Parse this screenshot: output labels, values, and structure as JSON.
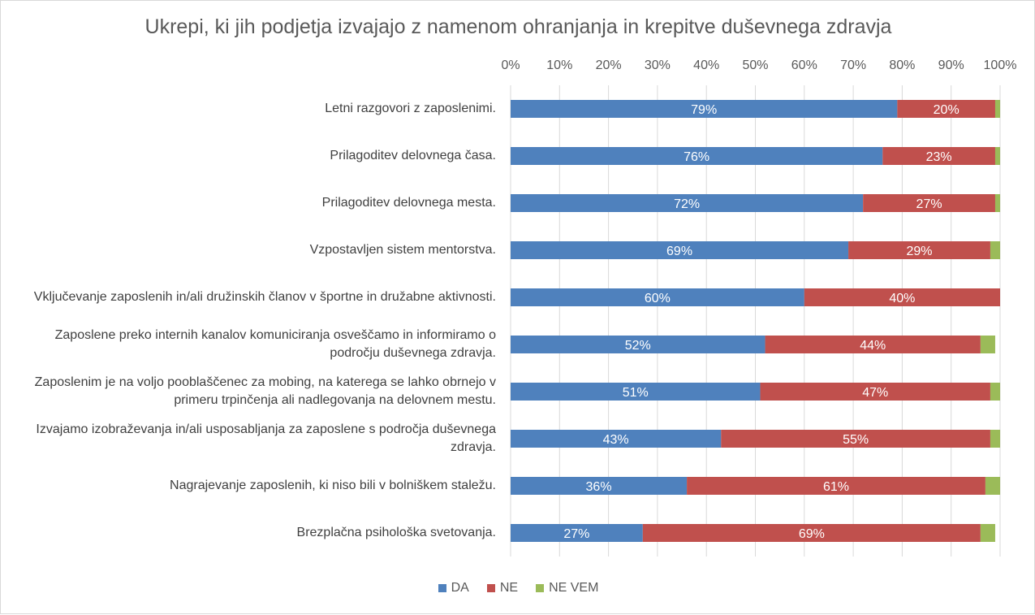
{
  "chart_data": {
    "type": "bar",
    "orientation": "horizontal",
    "stacked": "percent",
    "title": "Ukrepi, ki jih podjetja izvajajo z namenom ohranjanja in krepitve duševnega zdravja",
    "xlabel": "",
    "ylabel": "",
    "xlim": [
      0,
      100
    ],
    "x_ticks": [
      "0%",
      "10%",
      "20%",
      "30%",
      "40%",
      "50%",
      "60%",
      "70%",
      "80%",
      "90%",
      "100%"
    ],
    "x_axis_position": "top",
    "grid": true,
    "legend_position": "bottom",
    "categories": [
      "Letni razgovori z zaposlenimi.",
      "Prilagoditev delovnega časa.",
      "Prilagoditev delovnega mesta.",
      "Vzpostavljen sistem mentorstva.",
      "Vključevanje zaposlenih in/ali družinskih članov v športne in družabne aktivnosti.",
      "Zaposlene preko internih kanalov komuniciranja osveščamo in informiramo o področju duševnega zdravja.",
      "Zaposlenim je na voljo pooblaščenec za mobing, na katerega se lahko obrnejo v primeru trpinčenja ali nadlegovanja na delovnem mestu.",
      "Izvajamo izobraževanja in/ali usposabljanja za zaposlene s področja duševnega zdravja.",
      "Nagrajevanje zaposlenih, ki niso bili v bolniškem staležu.",
      "Brezplačna psihološka svetovanja."
    ],
    "series": [
      {
        "name": "DA",
        "color": "#4f81bd",
        "values": [
          79,
          76,
          72,
          69,
          60,
          52,
          51,
          43,
          36,
          27
        ],
        "labels": [
          "79%",
          "76%",
          "72%",
          "69%",
          "60%",
          "52%",
          "51%",
          "43%",
          "36%",
          "27%"
        ]
      },
      {
        "name": "NE",
        "color": "#c0504d",
        "values": [
          20,
          23,
          27,
          29,
          40,
          44,
          47,
          55,
          61,
          69
        ],
        "labels": [
          "20%",
          "23%",
          "27%",
          "29%",
          "40%",
          "44%",
          "47%",
          "55%",
          "61%",
          "69%"
        ]
      },
      {
        "name": "NE VEM",
        "color": "#9bbb59",
        "values": [
          1,
          1,
          1,
          2,
          0,
          3,
          2,
          2,
          3,
          3
        ],
        "labels": [
          "",
          "",
          "",
          "",
          "",
          "",
          "",
          "",
          "",
          ""
        ]
      }
    ]
  }
}
